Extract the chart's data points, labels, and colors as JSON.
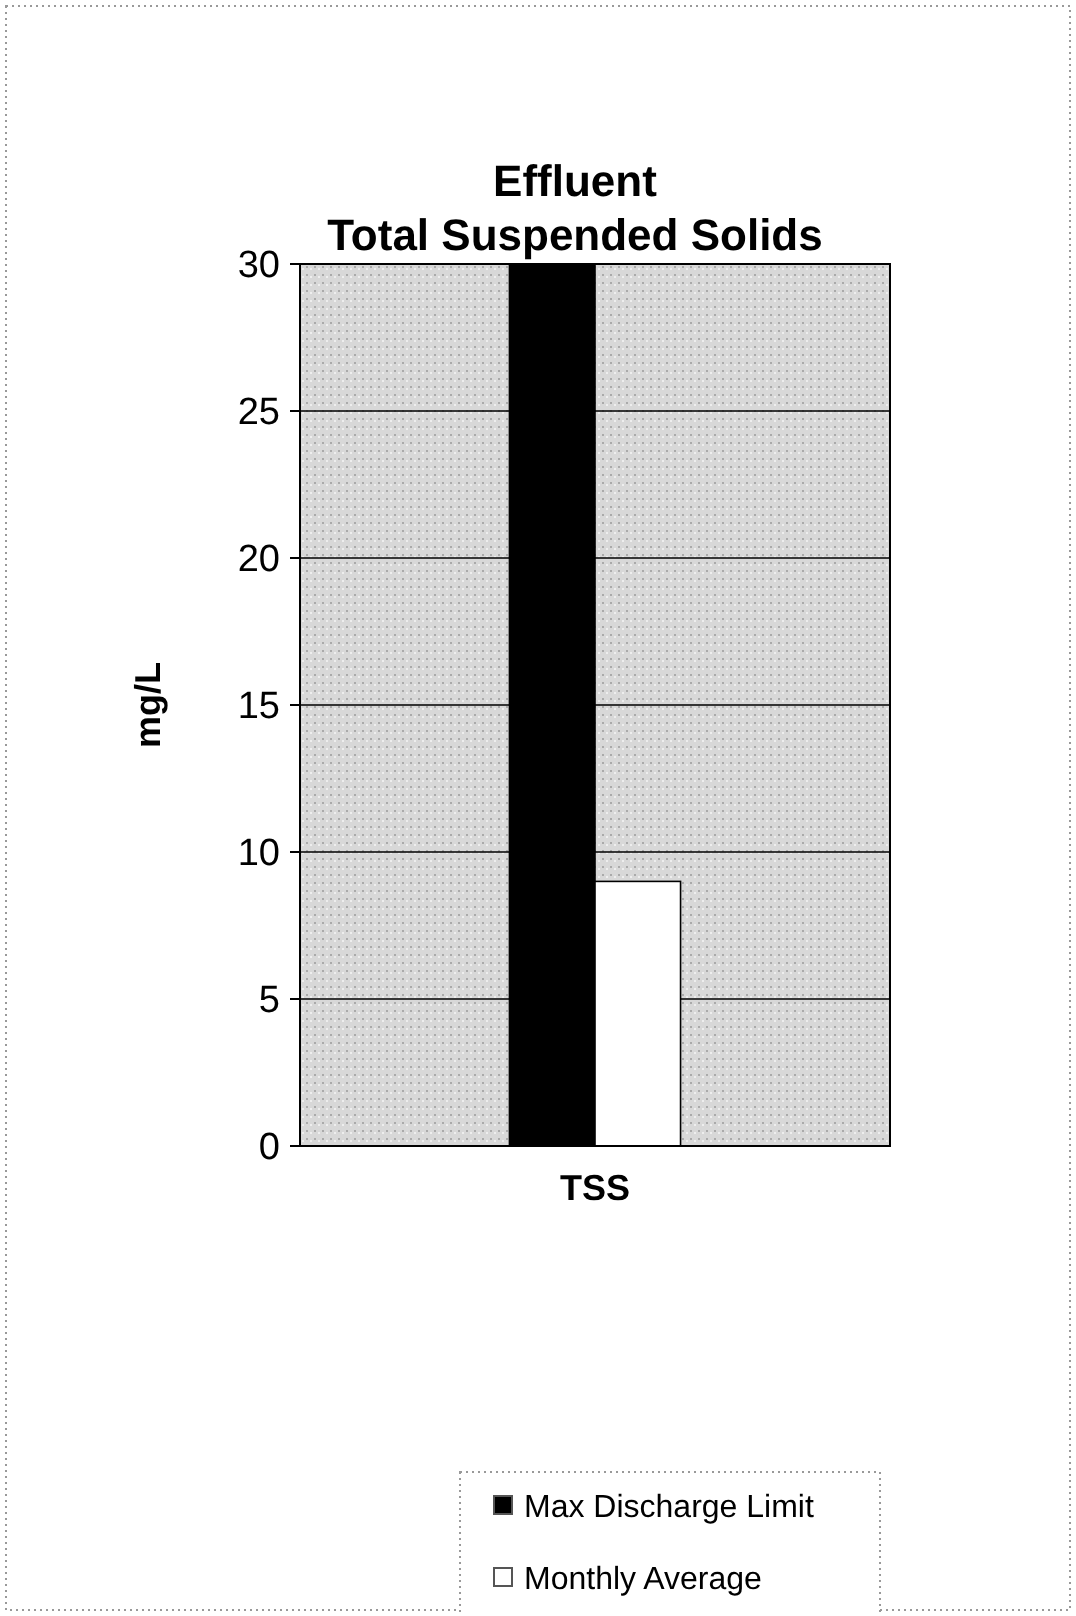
{
  "chart_data": {
    "type": "bar",
    "title": "Effluent\nTotal Suspended Solids",
    "ylabel": "mg/L",
    "categories": [
      "TSS"
    ],
    "series": [
      {
        "name": "Max Discharge Limit",
        "color": "#000000",
        "values": [
          30
        ]
      },
      {
        "name": "Monthly Average",
        "color": "#ffffff",
        "values": [
          9
        ]
      }
    ],
    "ylim": [
      0,
      30
    ],
    "yticks": [
      0,
      5,
      10,
      15,
      20,
      25,
      30
    ],
    "grid": "y",
    "legend": "bottom"
  }
}
